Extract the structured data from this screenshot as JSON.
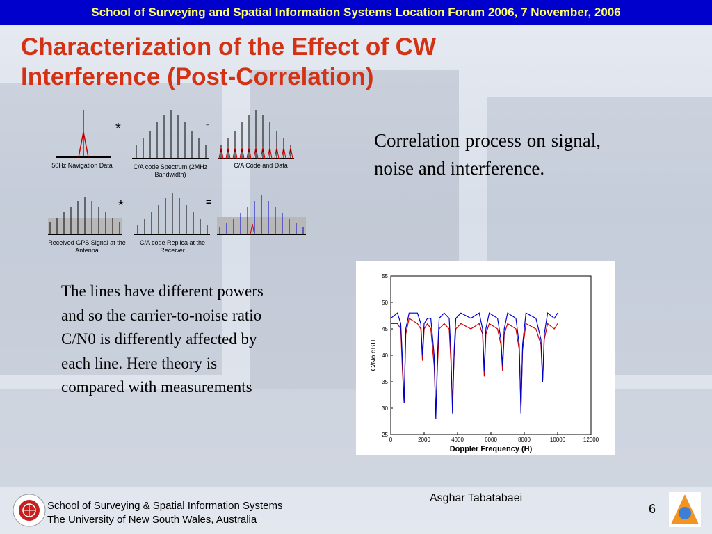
{
  "header": {
    "banner": "School of Surveying and Spatial Information Systems Location Forum 2006, 7 November, 2006"
  },
  "slide": {
    "title": "Characterization of the Effect of CW Interference (Post-Correlation)",
    "right_text": "Correlation process on signal, noise and interference.",
    "left_text": "The lines have different powers and so the carrier-to-noise ratio C/N0 is differently affected by each line. Here theory is compared with measurements",
    "author": "Asghar Tabatabaei",
    "page_number": "6"
  },
  "diagram": {
    "row1": {
      "panel1_label": "50Hz Navigation Data",
      "panel2_label": "C/A code Spectrum (2MHz Bandwidth)",
      "panel3_label": "C/A Code and Data",
      "operator1": "*",
      "operator2": "="
    },
    "row2": {
      "panel1_label": "Received GPS Signal at the Antenna",
      "panel2_label": "C/A code Replica at the Receiver",
      "operator1": "*",
      "operator2": "="
    },
    "colors": {
      "blue": "#0000cc",
      "red": "#cc0000",
      "grey_band": "#b8b8b8"
    }
  },
  "footer": {
    "line1": "School of Surveying & Spatial Information Systems",
    "line2": "The University of New South Wales, Australia"
  },
  "chart_data": {
    "type": "line",
    "title": "",
    "xlabel": "Doppler Frequency (H)",
    "ylabel": "C/No dBH",
    "xlim": [
      0,
      12000
    ],
    "ylim": [
      25,
      55
    ],
    "xticks": [
      0,
      2000,
      4000,
      6000,
      8000,
      10000,
      12000
    ],
    "yticks": [
      25,
      30,
      35,
      40,
      45,
      50,
      55
    ],
    "grid": false,
    "series": [
      {
        "color": "#cc0000",
        "x": [
          0,
          400,
          600,
          700,
          800,
          900,
          1100,
          1600,
          1800,
          1900,
          2000,
          2200,
          2400,
          2600,
          2700,
          2800,
          2900,
          3200,
          3500,
          3600,
          3700,
          3800,
          3900,
          4200,
          4800,
          5300,
          5500,
          5600,
          5700,
          5900,
          6400,
          6600,
          6700,
          6800,
          7000,
          7500,
          7700,
          7800,
          7900,
          8100,
          8700,
          9000,
          9100,
          9200,
          9400,
          9800,
          10000
        ],
        "y": [
          46,
          46,
          45,
          37,
          31,
          44,
          47,
          46,
          45,
          39,
          45,
          46,
          45,
          38,
          29,
          38,
          45,
          46,
          45,
          39,
          31,
          40,
          45,
          46,
          45,
          46,
          44,
          36,
          44,
          46,
          45,
          42,
          37,
          44,
          46,
          45,
          41,
          30,
          41,
          46,
          45,
          42,
          35,
          43,
          46,
          45,
          46
        ]
      },
      {
        "color": "#0000cc",
        "x": [
          0,
          400,
          600,
          700,
          800,
          900,
          1100,
          1600,
          1800,
          1900,
          2000,
          2200,
          2400,
          2600,
          2700,
          2800,
          2900,
          3200,
          3500,
          3600,
          3700,
          3800,
          3900,
          4200,
          4800,
          5300,
          5500,
          5600,
          5700,
          5900,
          6400,
          6600,
          6700,
          6800,
          7000,
          7500,
          7700,
          7800,
          7900,
          8100,
          8700,
          9000,
          9100,
          9200,
          9400,
          9800,
          10000
        ],
        "y": [
          47,
          48,
          46,
          39,
          31,
          45,
          48,
          48,
          46,
          40,
          46,
          47,
          47,
          40,
          28,
          40,
          47,
          48,
          47,
          41,
          29,
          41,
          47,
          48,
          47,
          48,
          45,
          37,
          45,
          48,
          47,
          43,
          38,
          45,
          48,
          47,
          42,
          29,
          42,
          48,
          47,
          43,
          35,
          44,
          48,
          47,
          48
        ]
      }
    ]
  }
}
